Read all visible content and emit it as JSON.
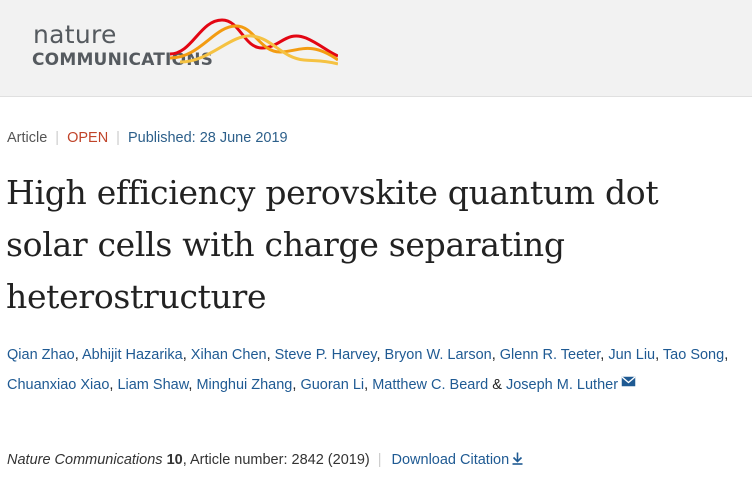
{
  "header": {
    "logo_line1": "nature",
    "logo_line2": "COMMUNICATIONS",
    "logo_wave_colors": [
      "#e30613",
      "#f39c12",
      "#f5c242"
    ]
  },
  "meta": {
    "article_type": "Article",
    "separator": "|",
    "access": "OPEN",
    "published": "Published: 28 June 2019"
  },
  "article": {
    "title": "High efficiency perovskite quantum dot solar cells with charge separating heterostructure"
  },
  "authors": [
    "Qian Zhao",
    "Abhijit Hazarika",
    "Xihan Chen",
    "Steve P. Harvey",
    "Bryon W. Larson",
    "Glenn R. Teeter",
    "Jun Liu",
    "Tao Song",
    "Chuanxiao Xiao",
    "Liam Shaw",
    "Minghui Zhang",
    "Guoran Li",
    "Matthew C. Beard",
    "Joseph M. Luther"
  ],
  "author_separators": {
    "comma": ", ",
    "and": " & "
  },
  "citation": {
    "journal": "Nature Communications",
    "volume": "10",
    "article_number_text": ", Article number: 2842 (2019)",
    "separator": "|",
    "download_label": "Download Citation"
  },
  "icons": {
    "corresponding_author": "mail-icon",
    "download": "download-arrow-icon"
  },
  "colors": {
    "link": "#1f5a93",
    "open_access": "#c0442a",
    "header_bg": "#f2f2f2"
  }
}
